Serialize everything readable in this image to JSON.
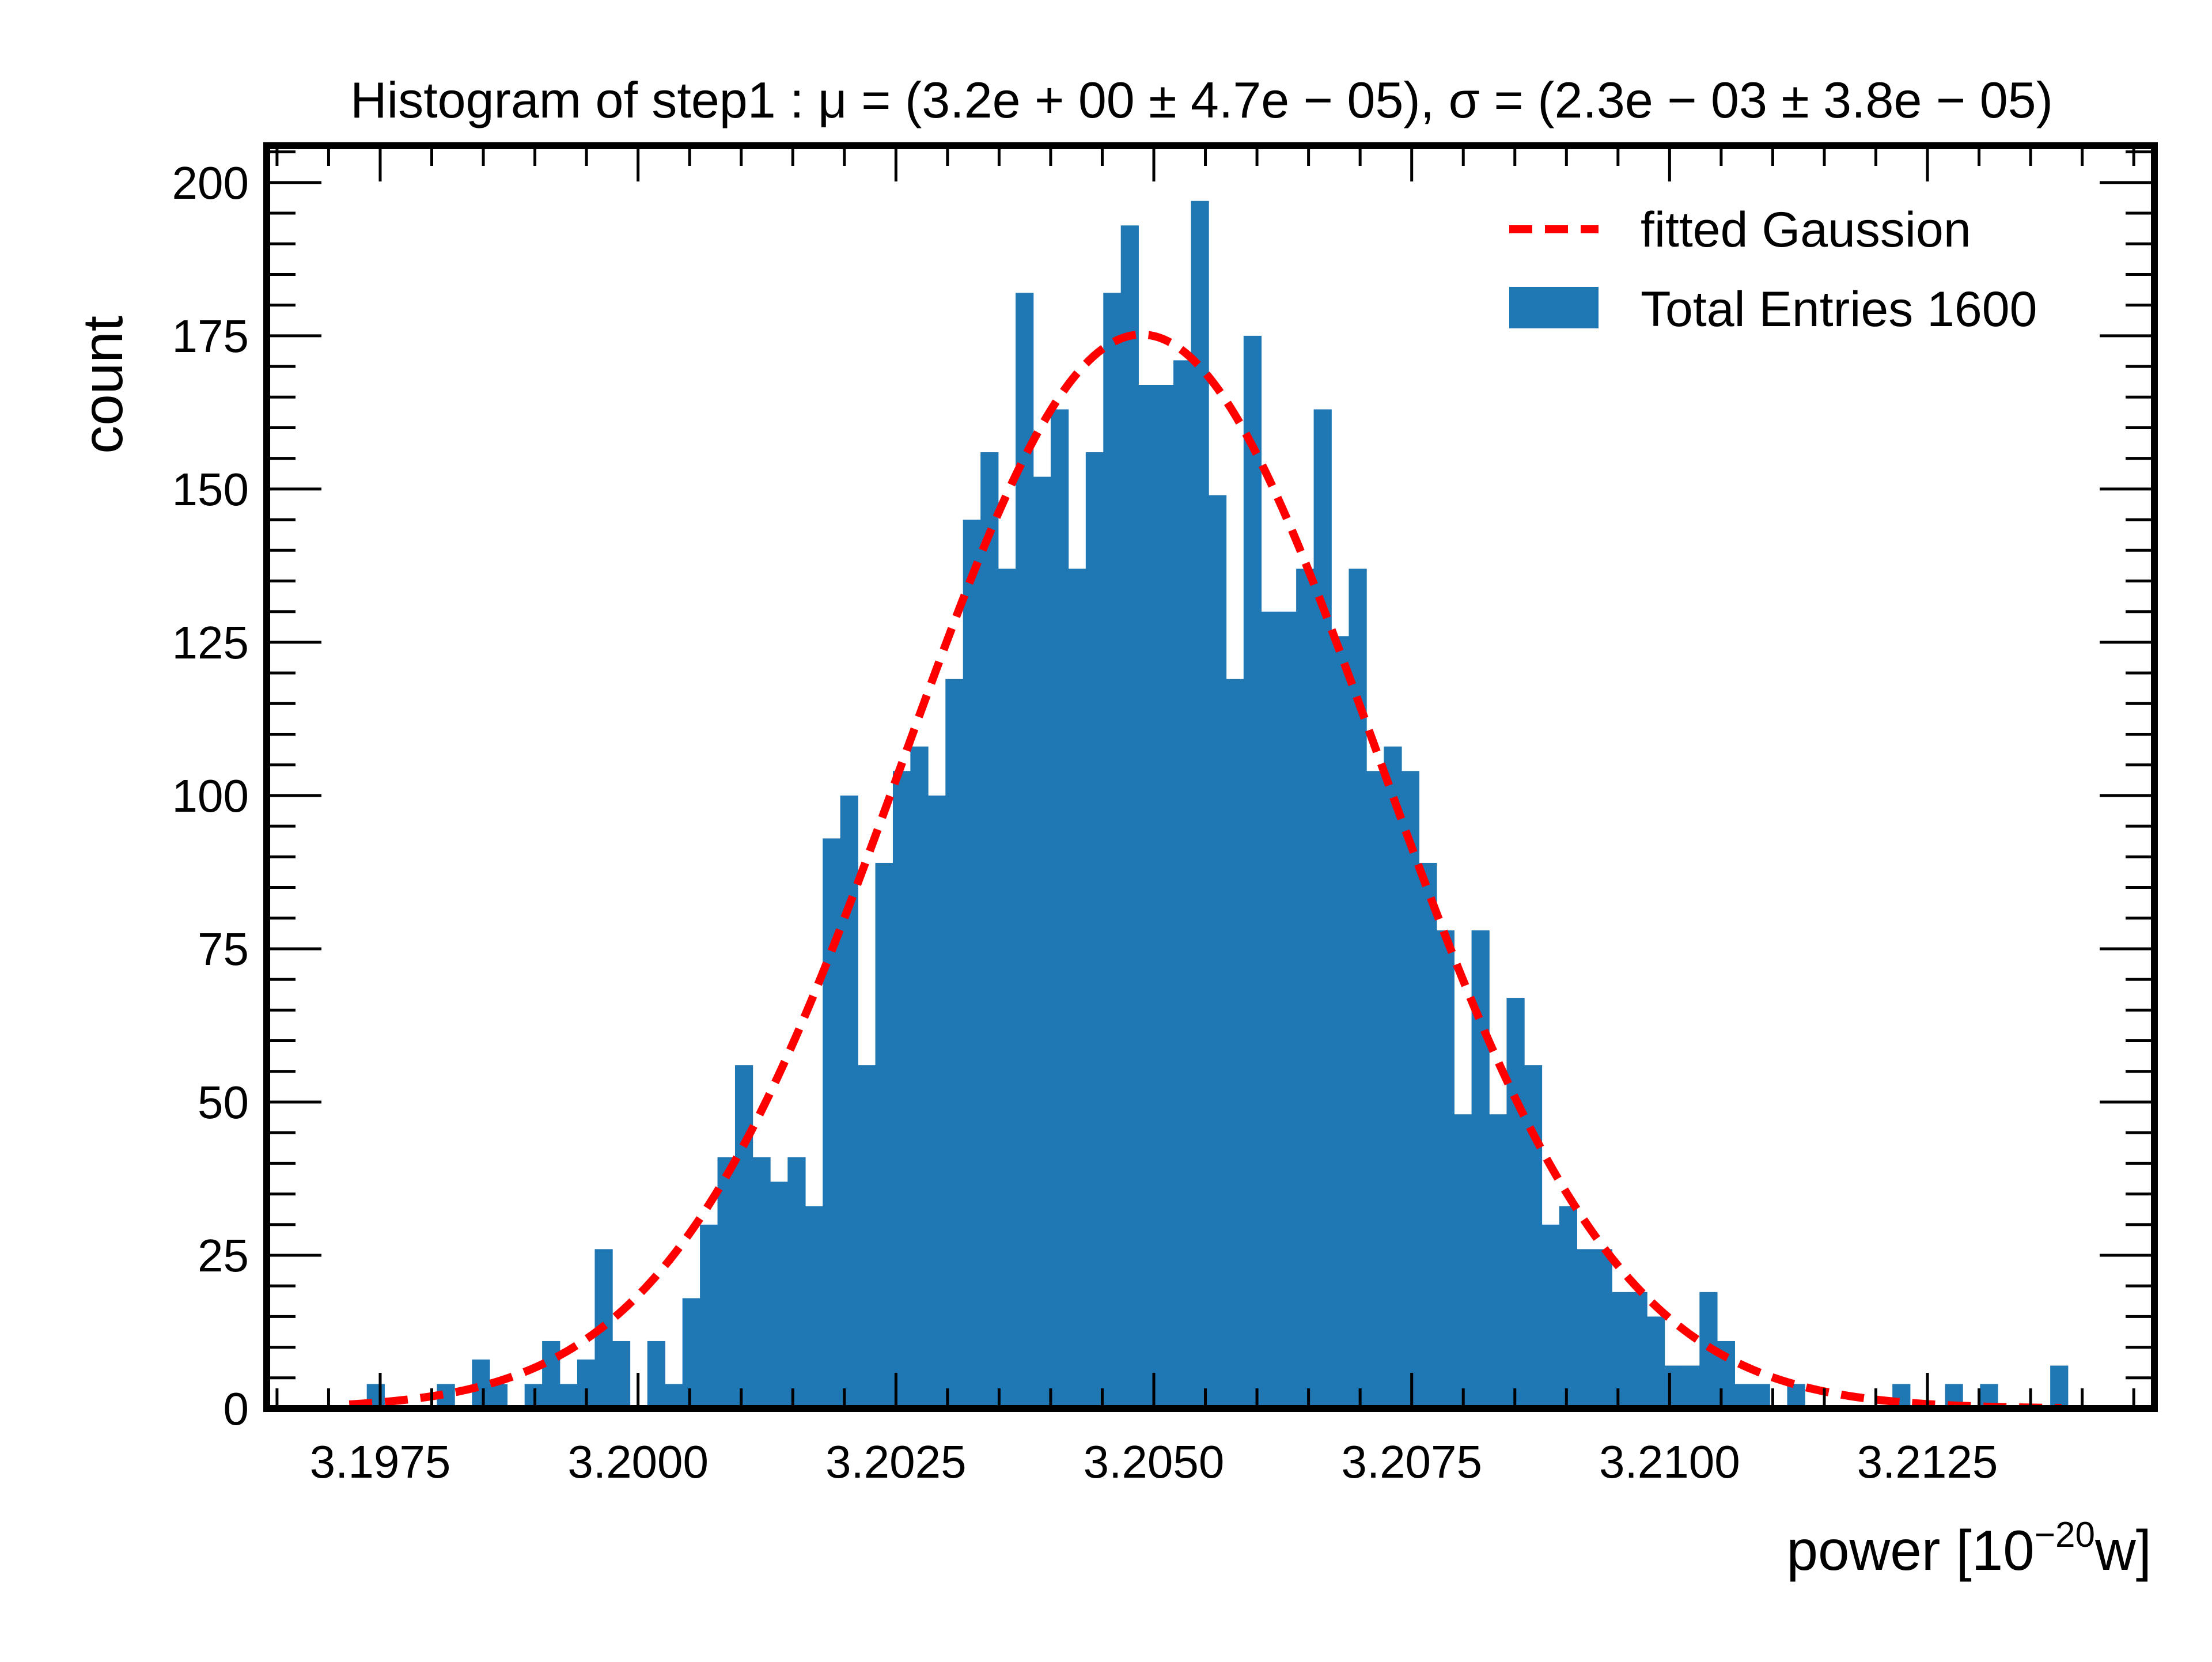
{
  "chart_data": {
    "type": "bar",
    "title": "Histogram of step1 :  μ = (3.2e + 00 ± 4.7e − 05),  σ = (2.3e − 03 ± 3.8e − 05)",
    "xlabel": "power [10",
    "xlabel_sup": "−20",
    "xlabel_suffix": "w]",
    "ylabel": "count",
    "xlim": [
      3.1964,
      3.2147
    ],
    "ylim": [
      0,
      206
    ],
    "x_ticks": [
      "3.1975",
      "3.2000",
      "3.2025",
      "3.2050",
      "3.2075",
      "3.2100",
      "3.2125"
    ],
    "y_ticks": [
      "0",
      "25",
      "50",
      "75",
      "100",
      "125",
      "150",
      "175",
      "200"
    ],
    "bin_start": 3.1972,
    "bin_width": 0.00017,
    "bar_color": "#1f77b4",
    "legend_position": "top-right",
    "series": [
      {
        "name": "Total Entries 1600",
        "type": "histogram",
        "values": [
          0.0,
          4.0,
          0.0,
          0.0,
          0.0,
          4.0,
          0.0,
          8.0,
          4.0,
          0.0,
          4.0,
          11.0,
          4.0,
          8.0,
          26.0,
          11.0,
          0.0,
          11.0,
          4.0,
          18.0,
          30.0,
          41.0,
          56.0,
          41.0,
          37.0,
          41.0,
          33.0,
          93.0,
          100.0,
          56.0,
          89.0,
          104.0,
          108.0,
          100.0,
          119.0,
          145.0,
          156.0,
          137.0,
          182.0,
          152.0,
          163.0,
          137.0,
          156.0,
          182.0,
          193.0,
          167.0,
          167.0,
          171.0,
          197.0,
          149.0,
          119.0,
          175.0,
          130.0,
          130.0,
          137.0,
          163.0,
          126.0,
          137.0,
          104.0,
          108.0,
          104.0,
          89.0,
          78.0,
          48.0,
          78.0,
          48.0,
          67.0,
          56.0,
          30.0,
          33.0,
          26.0,
          26.0,
          19.0,
          19.0,
          15.0,
          7.0,
          7.0,
          19.0,
          11.0,
          4.0,
          4.0,
          0.0,
          4.0,
          0.0,
          0.0,
          0.0,
          0.0,
          0.0,
          4.0,
          0.0,
          0.0,
          4.0,
          0.0,
          4.0,
          0.0,
          0.0,
          0.0,
          7.0
        ]
      },
      {
        "name": "fitted Gaussion",
        "type": "line",
        "color": "#ff0000",
        "style": "dashed",
        "mu": 3.20488,
        "sigma": 0.0023,
        "amplitude": 175.2,
        "x_range": [
          3.1972,
          3.2138
        ]
      }
    ]
  }
}
